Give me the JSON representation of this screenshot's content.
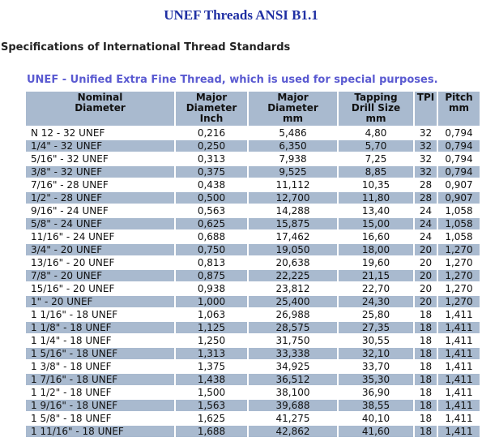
{
  "title": "UNEF Threads ANSI B1.1",
  "subtitle": "Specifications of International Thread Standards",
  "description": "UNEF - Unified Extra Fine Thread, which is used for special purposes.",
  "table": {
    "headers": [
      {
        "line1": "Nominal",
        "line2": "Diameter",
        "line3": ""
      },
      {
        "line1": "Major",
        "line2": "Diameter",
        "line3": "Inch"
      },
      {
        "line1": "Major",
        "line2": "Diameter",
        "line3": "mm"
      },
      {
        "line1": "Tapping",
        "line2": "Drill Size",
        "line3": "mm"
      },
      {
        "line1": "TPI",
        "line2": "",
        "line3": ""
      },
      {
        "line1": "Pitch",
        "line2": "mm",
        "line3": ""
      }
    ],
    "rows": [
      [
        "N 12 - 32 UNEF",
        "0,216",
        "5,486",
        "4,80",
        "32",
        "0,794"
      ],
      [
        "1/4\" - 32 UNEF",
        "0,250",
        "6,350",
        "5,70",
        "32",
        "0,794"
      ],
      [
        "5/16\" - 32 UNEF",
        "0,313",
        "7,938",
        "7,25",
        "32",
        "0,794"
      ],
      [
        "3/8\" - 32 UNEF",
        "0,375",
        "9,525",
        "8,85",
        "32",
        "0,794"
      ],
      [
        "7/16\" - 28 UNEF",
        "0,438",
        "11,112",
        "10,35",
        "28",
        "0,907"
      ],
      [
        "1/2\" - 28 UNEF",
        "0,500",
        "12,700",
        "11,80",
        "28",
        "0,907"
      ],
      [
        "9/16\" - 24 UNEF",
        "0,563",
        "14,288",
        "13,40",
        "24",
        "1,058"
      ],
      [
        "5/8\" - 24 UNEF",
        "0,625",
        "15,875",
        "15,00",
        "24",
        "1,058"
      ],
      [
        "11/16\" - 24 UNEF",
        "0,688",
        "17,462",
        "16,60",
        "24",
        "1,058"
      ],
      [
        "3/4\" - 20 UNEF",
        "0,750",
        "19,050",
        "18,00",
        "20",
        "1,270"
      ],
      [
        "13/16\" - 20 UNEF",
        "0,813",
        "20,638",
        "19,60",
        "20",
        "1,270"
      ],
      [
        "7/8\" - 20 UNEF",
        "0,875",
        "22,225",
        "21,15",
        "20",
        "1,270"
      ],
      [
        "15/16\" - 20 UNEF",
        "0,938",
        "23,812",
        "22,70",
        "20",
        "1,270"
      ],
      [
        "1\" - 20 UNEF",
        "1,000",
        "25,400",
        "24,30",
        "20",
        "1,270"
      ],
      [
        "1 1/16\" - 18 UNEF",
        "1,063",
        "26,988",
        "25,80",
        "18",
        "1,411"
      ],
      [
        "1 1/8\" - 18 UNEF",
        "1,125",
        "28,575",
        "27,35",
        "18",
        "1,411"
      ],
      [
        "1 1/4\" - 18 UNEF",
        "1,250",
        "31,750",
        "30,55",
        "18",
        "1,411"
      ],
      [
        "1 5/16\" - 18 UNEF",
        "1,313",
        "33,338",
        "32,10",
        "18",
        "1,411"
      ],
      [
        "1 3/8\" - 18 UNEF",
        "1,375",
        "34,925",
        "33,70",
        "18",
        "1,411"
      ],
      [
        "1 7/16\" - 18 UNEF",
        "1,438",
        "36,512",
        "35,30",
        "18",
        "1,411"
      ],
      [
        "1 1/2\" - 18 UNEF",
        "1,500",
        "38,100",
        "36,90",
        "18",
        "1,411"
      ],
      [
        "1 9/16\" - 18 UNEF",
        "1,563",
        "39,688",
        "38,55",
        "18",
        "1,411"
      ],
      [
        "1 5/8\" - 18 UNEF",
        "1,625",
        "41,275",
        "40,10",
        "18",
        "1,411"
      ],
      [
        "1 11/16\" - 18 UNEF",
        "1,688",
        "42,862",
        "41,60",
        "18",
        "1,411"
      ]
    ]
  },
  "colors": {
    "title": "#1f2fa3",
    "description": "#5a5ad1",
    "header_bg": "#a9bacf",
    "stripe_bg": "#a9bacf"
  }
}
